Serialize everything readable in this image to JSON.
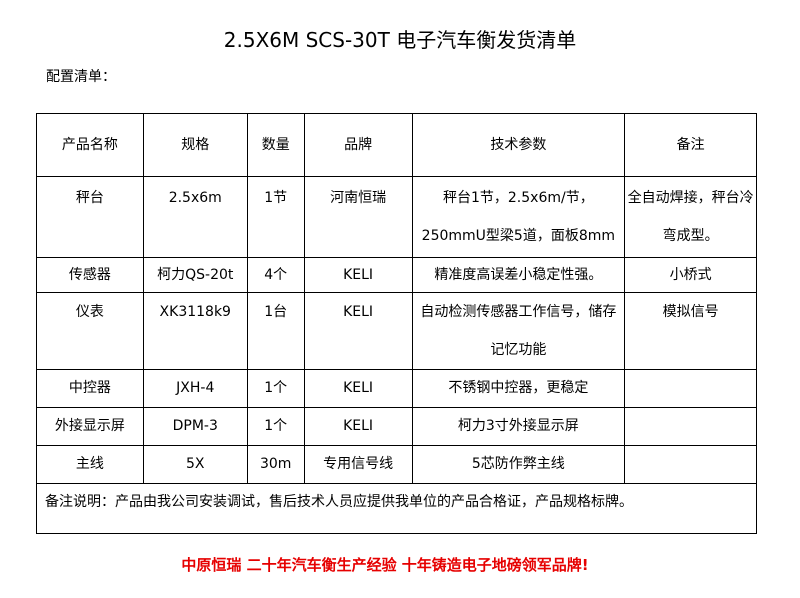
{
  "title": "2.5X6M SCS-30T 电子汽车衡发货清单",
  "subtitle": "配置清单：",
  "headers": [
    "产品名称",
    "规格",
    "数量",
    "品牌",
    "技术参数",
    "备注"
  ],
  "rows": [
    [
      "秤台",
      "2.5x6m",
      "1节",
      "河南恒瑞",
      "秤台1节，2.5x6m/节，250mmU型梁5道，面板8mm",
      "全自动焊接，秤台冷弯成型。"
    ],
    [
      "传感器",
      "柯力QS-20t",
      "4个",
      "KELI",
      "精准度高误差小稳定性强。",
      "小桥式"
    ],
    [
      "仪表",
      "XK3118k9",
      "1台",
      "KELI",
      "自动检测传感器工作信号，储存记忆功能",
      "模拟信号"
    ],
    [
      "中控器",
      "JXH-4",
      "1个",
      "KELI",
      "不锈钢中控器，更稳定",
      ""
    ],
    [
      "外接显示屏",
      "DPM-3",
      "1个",
      "KELI",
      "柯力3寸外接显示屏",
      ""
    ],
    [
      "主线",
      "5X",
      "30m",
      "专用信号线",
      "5芯防作弊主线",
      ""
    ]
  ],
  "note": "备注说明：产品由我公司安装调试，售后技术人员应提供我单位的产品合格证，产品规格标牌。",
  "slogan": "中原恒瑞 二十年汽车衡生产经验 十年铸造电子地磅领军品牌!",
  "colors": {
    "slogan": "#e60000"
  }
}
